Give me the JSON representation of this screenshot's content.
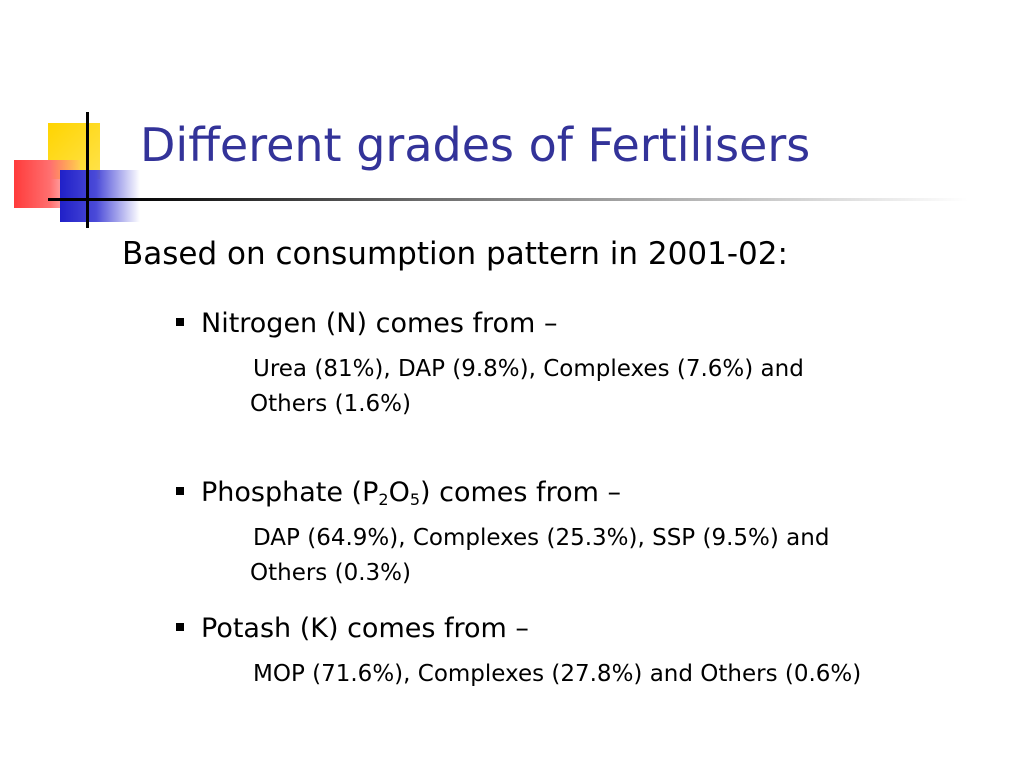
{
  "slide": {
    "title": "Different grades of Fertilisers",
    "intro": "Based on consumption pattern in 2001-02:",
    "bullets": [
      {
        "heading": "Nitrogen (N) comes from –",
        "detail_line1": "Urea (81%), DAP (9.8%), Complexes (7.6%)  and",
        "detail_line2": "Others (1.6%)"
      },
      {
        "heading_pre": "Phosphate (P",
        "sub1": "2",
        "heading_mid": "O",
        "sub2": "5",
        "heading_post": ") comes from –",
        "detail_line1": "DAP (64.9%), Complexes (25.3%), SSP (9.5%) and",
        "detail_line2": "Others (0.3%)"
      },
      {
        "heading": "Potash (K) comes from –",
        "detail_line1": "MOP (71.6%), Complexes (27.8%) and Others (0.6%)"
      }
    ]
  },
  "colors": {
    "title": "#333399",
    "accent_yellow": "#ffd400",
    "accent_red": "#ff3b3b",
    "accent_blue": "#2020c8"
  },
  "icons": [
    "square-bullet-icon"
  ]
}
